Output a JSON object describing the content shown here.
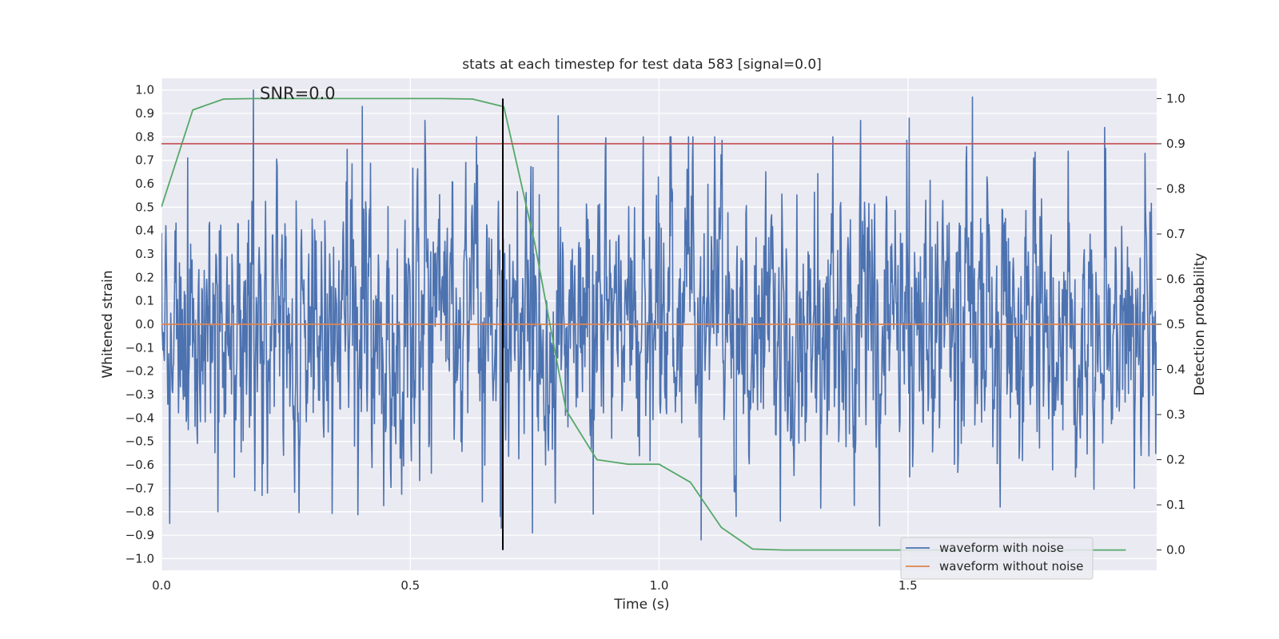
{
  "chart_data": {
    "type": "line",
    "title": "stats at each timestep for test data 583 [signal=0.0]",
    "xlabel": "Time (s)",
    "ylabel": "Whitened strain",
    "y2label": "Detection probability",
    "xlim": [
      0.0,
      2.0
    ],
    "ylim": [
      -1.05,
      1.05
    ],
    "y2lim": [
      -0.045,
      1.045
    ],
    "x_ticks": [
      0.0,
      0.5,
      1.0,
      1.5
    ],
    "x_tick_labels": [
      "0.0",
      "0.5",
      "1.0",
      "1.5"
    ],
    "y_ticks": [
      1.0,
      0.9,
      0.8,
      0.7,
      0.6,
      0.5,
      0.4,
      0.3,
      0.2,
      0.1,
      0.0,
      -0.1,
      -0.2,
      -0.3,
      -0.4,
      -0.5,
      -0.6,
      -0.7,
      -0.8,
      -0.9,
      -1.0
    ],
    "y_tick_labels": [
      "1.0",
      "0.9",
      "0.8",
      "0.7",
      "0.6",
      "0.5",
      "0.4",
      "0.3",
      "0.2",
      "0.1",
      "0.0",
      "−0.1",
      "−0.2",
      "−0.3",
      "−0.4",
      "−0.5",
      "−0.6",
      "−0.7",
      "−0.8",
      "−0.9",
      "−1.0"
    ],
    "y2_ticks": [
      1.0,
      0.9,
      0.8,
      0.7,
      0.6,
      0.5,
      0.4,
      0.3,
      0.2,
      0.1,
      0.0
    ],
    "y2_tick_labels": [
      "1.0",
      "0.9",
      "0.8",
      "0.7",
      "0.6",
      "0.5",
      "0.4",
      "0.3",
      "0.2",
      "0.1",
      "0.0"
    ],
    "grid": true,
    "legend_position": "lower-right",
    "annotation": "SNR=0.0",
    "threshold_y2": 0.9,
    "marker_x": 0.686,
    "series": [
      {
        "name": "waveform with noise",
        "axis": "left",
        "color": "#4c72b0",
        "x_start": 0.0,
        "x_end": 2.0,
        "noise_std": 0.3,
        "spikes": [
          {
            "x": 0.185,
            "y": 1.0
          },
          {
            "x": 0.404,
            "y": 0.93
          },
          {
            "x": 0.053,
            "y": 0.71
          },
          {
            "x": 0.0,
            "y": 0.39
          },
          {
            "x": 0.53,
            "y": 0.87
          },
          {
            "x": 0.797,
            "y": 0.89
          },
          {
            "x": 1.63,
            "y": 0.97
          },
          {
            "x": 1.503,
            "y": 0.88
          },
          {
            "x": 1.405,
            "y": 0.87
          },
          {
            "x": 1.895,
            "y": 0.84
          },
          {
            "x": 0.017,
            "y": -0.85
          },
          {
            "x": 0.113,
            "y": -0.8
          },
          {
            "x": 0.745,
            "y": -0.89
          },
          {
            "x": 1.085,
            "y": -0.92
          },
          {
            "x": 1.244,
            "y": -0.84
          },
          {
            "x": 1.443,
            "y": -0.86
          },
          {
            "x": 0.683,
            "y": -0.87
          },
          {
            "x": 0.213,
            "y": -0.72
          },
          {
            "x": 0.868,
            "y": -0.81
          },
          {
            "x": 1.685,
            "y": -0.78
          },
          {
            "x": 1.955,
            "y": -0.7
          }
        ]
      },
      {
        "name": "waveform without noise",
        "axis": "left",
        "color": "#dd8452",
        "x": [
          0.0,
          2.0
        ],
        "y": [
          0.0,
          0.0
        ]
      },
      {
        "name": "",
        "axis": "right",
        "color": "#55a868",
        "x": [
          0.0,
          0.063,
          0.125,
          0.188,
          0.25,
          0.313,
          0.375,
          0.438,
          0.5,
          0.563,
          0.625,
          0.688,
          0.75,
          0.813,
          0.875,
          0.938,
          1.0,
          1.063,
          1.125,
          1.188,
          1.25,
          1.313,
          1.375,
          1.438,
          1.5,
          1.563,
          1.625,
          1.688,
          1.75,
          1.813,
          1.875,
          1.938
        ],
        "y": [
          0.76,
          0.975,
          0.999,
          1.0,
          1.0,
          1.0,
          1.0,
          1.0,
          1.0,
          1.0,
          0.999,
          0.982,
          0.68,
          0.31,
          0.2,
          0.19,
          0.19,
          0.15,
          0.05,
          0.002,
          0.0,
          0.0,
          0.0,
          0.0,
          0.0,
          0.0,
          0.0,
          0.0,
          0.0,
          0.0,
          0.0,
          0.0
        ]
      },
      {
        "name": "",
        "axis": "right",
        "color": "#c44e52",
        "x": [
          0.0,
          2.0
        ],
        "y": [
          0.9,
          0.9
        ]
      }
    ]
  }
}
